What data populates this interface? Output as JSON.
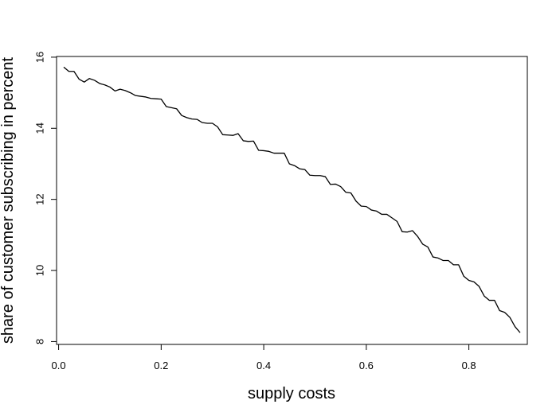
{
  "chart_data": {
    "type": "line",
    "title": "",
    "xlabel": "supply costs",
    "ylabel": "share of customer subscribing in percent",
    "xlim": [
      -0.004,
      0.914
    ],
    "ylim": [
      7.92,
      16.02
    ],
    "xticks": [
      0.0,
      0.2,
      0.4,
      0.6,
      0.8
    ],
    "xtick_labels": [
      "0.0",
      "0.2",
      "0.4",
      "0.6",
      "0.8"
    ],
    "yticks": [
      8,
      10,
      12,
      14,
      16
    ],
    "ytick_labels": [
      "8",
      "10",
      "12",
      "14",
      "16"
    ],
    "grid": false,
    "legend": "none",
    "line_color": "#000000",
    "series": [
      {
        "x": [
          0.01,
          0.02,
          0.03,
          0.04,
          0.05,
          0.06,
          0.07,
          0.08,
          0.09,
          0.1,
          0.11,
          0.12,
          0.13,
          0.14,
          0.15,
          0.16,
          0.17,
          0.18,
          0.19,
          0.2,
          0.21,
          0.22,
          0.23,
          0.24,
          0.25,
          0.26,
          0.27,
          0.28,
          0.29,
          0.3,
          0.31,
          0.32,
          0.33,
          0.34,
          0.35,
          0.36,
          0.37,
          0.38,
          0.39,
          0.4,
          0.41,
          0.42,
          0.43,
          0.44,
          0.45,
          0.46,
          0.47,
          0.48,
          0.49,
          0.5,
          0.51,
          0.52,
          0.53,
          0.54,
          0.55,
          0.56,
          0.57,
          0.58,
          0.59,
          0.6,
          0.61,
          0.62,
          0.63,
          0.64,
          0.65,
          0.66,
          0.67,
          0.68,
          0.69,
          0.7,
          0.71,
          0.72,
          0.73,
          0.74,
          0.75,
          0.76,
          0.77,
          0.78,
          0.79,
          0.8,
          0.81,
          0.82,
          0.83,
          0.84,
          0.85,
          0.86,
          0.87,
          0.88,
          0.89,
          0.9
        ],
        "y": [
          15.72,
          15.6,
          15.6,
          15.38,
          15.3,
          15.4,
          15.35,
          15.26,
          15.22,
          15.16,
          15.05,
          15.1,
          15.06,
          15.0,
          14.92,
          14.9,
          14.88,
          14.84,
          14.83,
          14.82,
          14.61,
          14.58,
          14.55,
          14.36,
          14.3,
          14.26,
          14.25,
          14.16,
          14.14,
          14.14,
          14.04,
          13.82,
          13.81,
          13.8,
          13.85,
          13.65,
          13.63,
          13.64,
          13.38,
          13.37,
          13.35,
          13.3,
          13.3,
          13.3,
          13.0,
          12.95,
          12.86,
          12.84,
          12.68,
          12.67,
          12.67,
          12.64,
          12.42,
          12.43,
          12.36,
          12.2,
          12.18,
          11.95,
          11.81,
          11.8,
          11.7,
          11.67,
          11.58,
          11.58,
          11.48,
          11.38,
          11.09,
          11.08,
          11.12,
          10.96,
          10.74,
          10.66,
          10.38,
          10.35,
          10.28,
          10.28,
          10.16,
          10.16,
          9.84,
          9.72,
          9.68,
          9.55,
          9.28,
          9.16,
          9.16,
          8.87,
          8.82,
          8.68,
          8.42,
          8.25
        ]
      }
    ]
  }
}
